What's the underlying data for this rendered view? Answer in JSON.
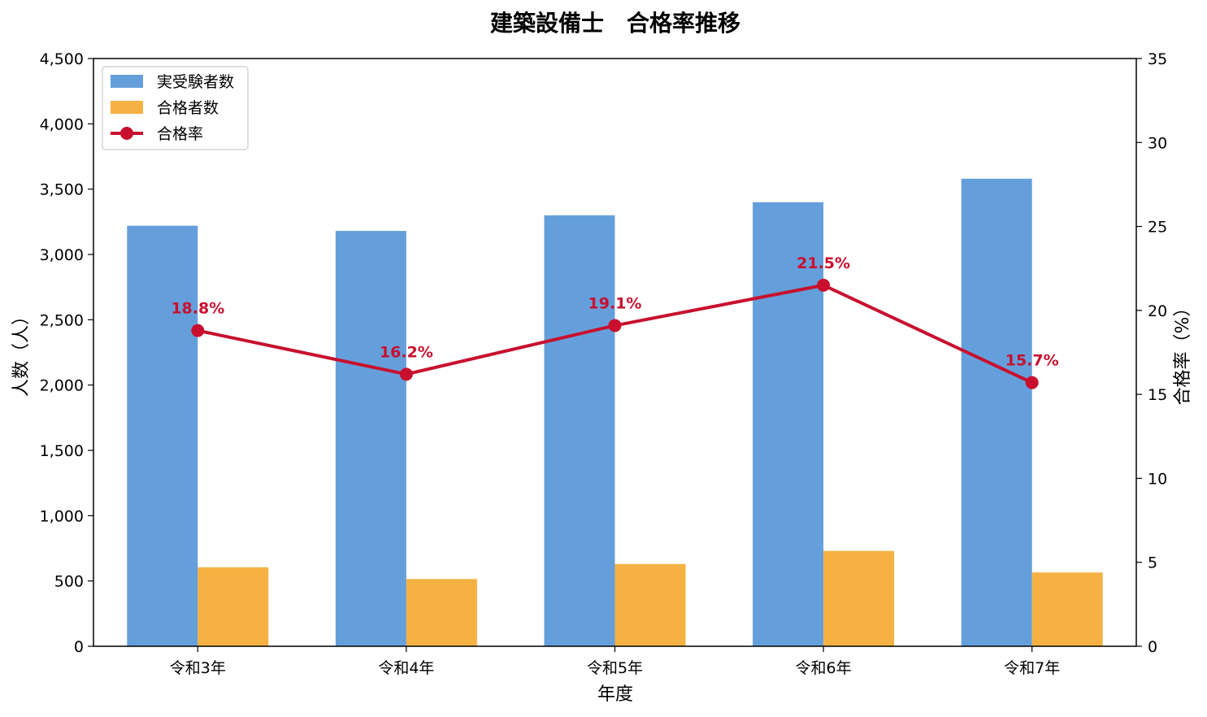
{
  "chart_data": {
    "type": "bar",
    "title": "建築設備士　合格率推移",
    "xlabel": "年度",
    "ylabel": "人数（人）",
    "y2label": "合格率（%）",
    "categories": [
      "令和3年",
      "令和4年",
      "令和5年",
      "令和6年",
      "令和7年"
    ],
    "ylim": [
      0,
      4500
    ],
    "y2lim": [
      0,
      35
    ],
    "yticks": [
      "0",
      "500",
      "1,000",
      "1,500",
      "2,000",
      "2,500",
      "3,000",
      "3,500",
      "4,000",
      "4,500"
    ],
    "y2ticks": [
      "0",
      "5",
      "10",
      "15",
      "20",
      "25",
      "30",
      "35"
    ],
    "series": [
      {
        "name": "実受験者数",
        "kind": "bar",
        "axis": "left",
        "color": "#659fdb",
        "values": [
          3220,
          3180,
          3300,
          3400,
          3580
        ]
      },
      {
        "name": "合格者数",
        "kind": "bar",
        "axis": "left",
        "color": "#f5b142",
        "values": [
          605,
          515,
          630,
          730,
          565
        ]
      },
      {
        "name": "合格率",
        "kind": "line",
        "axis": "right",
        "color": "#c8102e",
        "values": [
          18.8,
          16.2,
          19.1,
          21.5,
          15.7
        ],
        "labels": [
          "18.8%",
          "16.2%",
          "19.1%",
          "21.5%",
          "15.7%"
        ]
      }
    ],
    "legend_position": "top-left",
    "grid": false
  }
}
